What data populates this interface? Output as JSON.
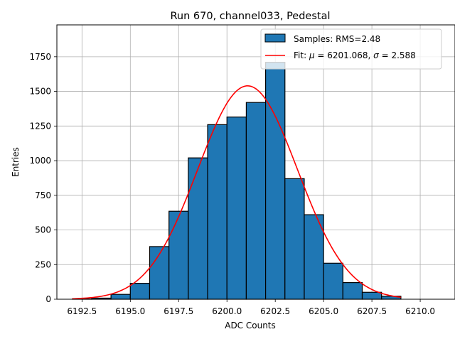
{
  "chart_data": {
    "type": "bar",
    "title": "Run 670, channel033, Pedestal",
    "xlabel": "ADC Counts",
    "ylabel": "Entries",
    "xlim": [
      6191.2,
      6211.8
    ],
    "ylim": [
      0,
      1980
    ],
    "xticks": [
      6192.5,
      6195.0,
      6197.5,
      6200.0,
      6202.5,
      6205.0,
      6207.5,
      6210.0
    ],
    "xtick_labels": [
      "6192.5",
      "6195.0",
      "6197.5",
      "6200.0",
      "6202.5",
      "6205.0",
      "6207.5",
      "6210.0"
    ],
    "yticks": [
      0,
      250,
      500,
      750,
      1000,
      1250,
      1500,
      1750
    ],
    "ytick_labels": [
      "0",
      "250",
      "500",
      "750",
      "1000",
      "1250",
      "1500",
      "1750"
    ],
    "grid": true,
    "legend_position": "top-right",
    "bar_color": "#1f77b4",
    "fit_color": "#ff0000",
    "series": [
      {
        "name": "Samples: RMS=2.48",
        "type": "histogram",
        "bins": [
          {
            "x0": 6192,
            "x1": 6193,
            "count": 2
          },
          {
            "x0": 6193,
            "x1": 6194,
            "count": 8
          },
          {
            "x0": 6194,
            "x1": 6195,
            "count": 35
          },
          {
            "x0": 6195,
            "x1": 6196,
            "count": 115
          },
          {
            "x0": 6196,
            "x1": 6197,
            "count": 380
          },
          {
            "x0": 6197,
            "x1": 6198,
            "count": 635
          },
          {
            "x0": 6198,
            "x1": 6199,
            "count": 1020
          },
          {
            "x0": 6199,
            "x1": 6200,
            "count": 1260
          },
          {
            "x0": 6200,
            "x1": 6201,
            "count": 1315
          },
          {
            "x0": 6201,
            "x1": 6202,
            "count": 1420
          },
          {
            "x0": 6202,
            "x1": 6203,
            "count": 1710
          },
          {
            "x0": 6203,
            "x1": 6204,
            "count": 870
          },
          {
            "x0": 6204,
            "x1": 6205,
            "count": 610
          },
          {
            "x0": 6205,
            "x1": 6206,
            "count": 260
          },
          {
            "x0": 6206,
            "x1": 6207,
            "count": 120
          },
          {
            "x0": 6207,
            "x1": 6208,
            "count": 50
          },
          {
            "x0": 6208,
            "x1": 6209,
            "count": 22
          }
        ]
      },
      {
        "name_prefix": "Fit: ",
        "name_mu": "μ",
        "name_mid": " = 6201.068, ",
        "name_sigma": "σ",
        "name_suffix": " = 2.588",
        "type": "gaussian",
        "mu": 6201.068,
        "sigma": 2.588,
        "amplitude": 1540,
        "x_range": [
          6192,
          6209
        ]
      }
    ]
  }
}
